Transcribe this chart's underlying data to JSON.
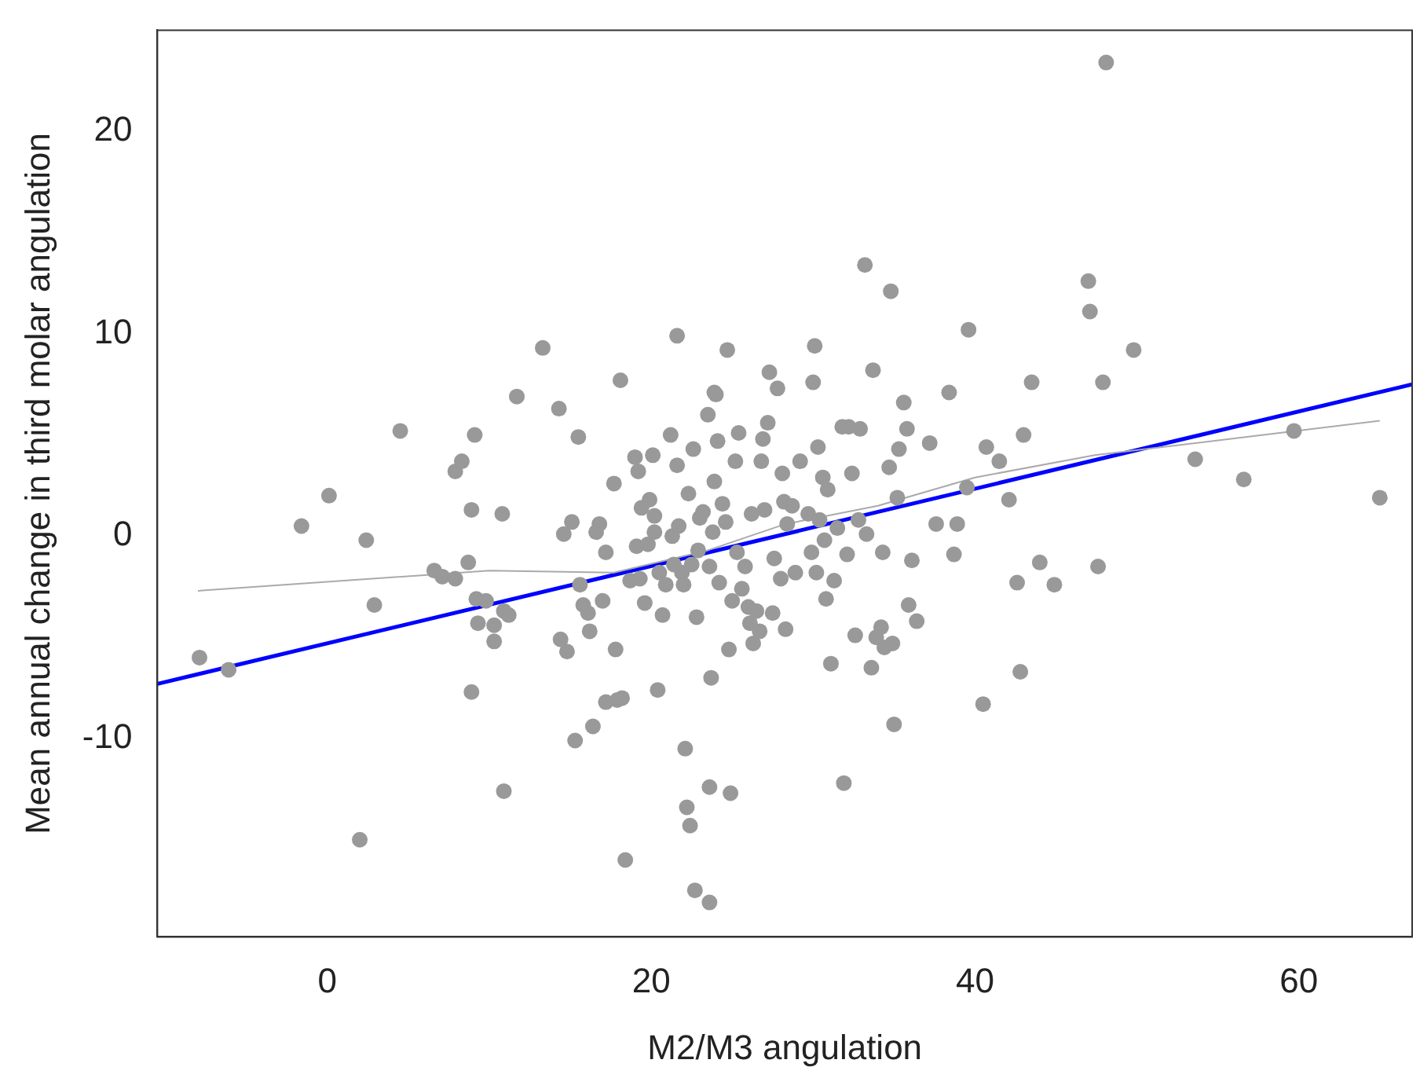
{
  "chart_data": {
    "type": "scatter",
    "xlabel": "M2/M3 angulation",
    "ylabel": "Mean annual change in third molar angulation",
    "xlim": [
      -10.5,
      67
    ],
    "ylim": [
      -19.8,
      25
    ],
    "xticks": [
      0,
      20,
      40,
      60
    ],
    "yticks": [
      -10,
      0,
      10,
      20
    ],
    "grid": false,
    "legend": false,
    "marker": "circle",
    "series": [
      {
        "color": "#999999",
        "x": [
          -7.9,
          -6.1,
          -1.6,
          0.1,
          2.4,
          2.0,
          2.9,
          4.5,
          6.6,
          7.1,
          7.9,
          7.9,
          8.3,
          8.7,
          8.9,
          8.9,
          9.1,
          9.2,
          9.3,
          9.8,
          10.3,
          10.3,
          10.8,
          10.9,
          10.9,
          11.2,
          11.7,
          13.3,
          14.3,
          14.4,
          14.6,
          14.8,
          15.1,
          15.3,
          15.5,
          15.6,
          15.8,
          16.1,
          16.2,
          16.4,
          16.6,
          16.8,
          17.0,
          17.2,
          17.2,
          17.7,
          17.8,
          17.9,
          18.1,
          18.2,
          18.4,
          18.7,
          19.0,
          19.1,
          19.2,
          19.3,
          19.4,
          19.6,
          19.8,
          19.9,
          20.1,
          20.2,
          20.2,
          20.4,
          20.5,
          20.7,
          20.9,
          21.2,
          21.3,
          21.4,
          21.6,
          21.6,
          21.7,
          21.9,
          22.0,
          22.1,
          22.2,
          22.3,
          22.4,
          22.5,
          22.6,
          22.7,
          22.8,
          22.9,
          23.0,
          23.2,
          23.5,
          23.6,
          23.6,
          23.6,
          23.7,
          23.8,
          23.9,
          23.9,
          24.0,
          24.1,
          24.2,
          24.4,
          24.6,
          24.7,
          24.8,
          24.9,
          25.0,
          25.2,
          25.3,
          25.4,
          25.6,
          25.8,
          26.0,
          26.1,
          26.2,
          26.3,
          26.5,
          26.7,
          26.8,
          26.9,
          27.0,
          27.2,
          27.3,
          27.5,
          27.6,
          27.8,
          28.0,
          28.1,
          28.2,
          28.3,
          28.4,
          28.7,
          28.9,
          29.2,
          29.7,
          29.9,
          30.0,
          30.1,
          30.2,
          30.3,
          30.4,
          30.6,
          30.7,
          30.8,
          30.9,
          31.1,
          31.3,
          31.5,
          31.8,
          31.9,
          32.1,
          32.2,
          32.4,
          32.6,
          32.8,
          32.9,
          33.2,
          33.3,
          33.6,
          33.7,
          33.9,
          34.2,
          34.3,
          34.4,
          34.7,
          34.8,
          34.9,
          35.0,
          35.2,
          35.3,
          35.6,
          35.8,
          35.9,
          36.1,
          36.4,
          37.2,
          37.6,
          38.4,
          38.7,
          38.9,
          39.5,
          39.6,
          40.5,
          40.7,
          41.5,
          42.1,
          42.6,
          42.8,
          43.0,
          43.5,
          44.0,
          44.9,
          47.0,
          47.1,
          47.6,
          47.9,
          48.1,
          49.8,
          53.6,
          56.6,
          59.7,
          65.0
        ],
        "values": [
          -6.0,
          -6.6,
          0.5,
          2.0,
          -0.2,
          -15.0,
          -3.4,
          5.2,
          -1.7,
          -2.0,
          -2.1,
          3.2,
          3.7,
          -1.3,
          1.3,
          -7.7,
          5.0,
          -3.1,
          -4.3,
          -3.2,
          -4.4,
          -5.2,
          1.1,
          -3.7,
          -12.6,
          -3.9,
          6.9,
          9.3,
          6.3,
          -5.1,
          0.1,
          -5.7,
          0.7,
          -10.1,
          4.9,
          -2.4,
          -3.4,
          -3.8,
          -4.7,
          -9.4,
          0.2,
          0.6,
          -3.2,
          -0.8,
          -8.2,
          2.6,
          -5.6,
          -8.1,
          7.7,
          -8.0,
          -16.0,
          -2.2,
          3.9,
          -0.5,
          3.2,
          -2.1,
          1.4,
          -3.3,
          -0.4,
          1.8,
          4.0,
          1.0,
          0.2,
          -7.6,
          -1.8,
          -3.9,
          -2.4,
          5.0,
          0.0,
          -1.4,
          9.9,
          3.5,
          0.5,
          -1.8,
          -2.4,
          -10.5,
          -13.4,
          2.1,
          -14.3,
          -1.4,
          4.3,
          -17.5,
          -4.0,
          -0.7,
          0.9,
          1.2,
          6.0,
          -1.5,
          -12.4,
          -18.1,
          -7.0,
          0.2,
          2.7,
          7.1,
          7.0,
          4.7,
          -2.3,
          1.6,
          0.7,
          9.2,
          -5.6,
          -12.7,
          -3.2,
          3.7,
          -0.8,
          5.1,
          -2.6,
          -1.5,
          -3.5,
          -4.3,
          1.1,
          -5.3,
          -3.7,
          -4.7,
          3.7,
          4.8,
          1.3,
          5.6,
          8.1,
          -3.8,
          -1.1,
          7.3,
          -2.1,
          3.1,
          1.7,
          -4.6,
          0.6,
          1.5,
          -1.8,
          3.7,
          1.1,
          -0.8,
          7.6,
          9.4,
          -1.8,
          4.4,
          0.8,
          2.9,
          -0.2,
          -3.1,
          2.3,
          -6.3,
          -2.2,
          0.4,
          5.4,
          -12.2,
          -0.9,
          5.4,
          3.1,
          -4.9,
          0.8,
          5.3,
          13.4,
          0.1,
          -6.5,
          8.2,
          -5.0,
          -4.5,
          -0.8,
          -5.5,
          3.4,
          12.1,
          -5.3,
          -9.3,
          1.9,
          4.3,
          6.6,
          5.3,
          -3.4,
          -1.2,
          -4.2,
          4.6,
          0.6,
          7.1,
          -0.9,
          0.6,
          2.4,
          10.2,
          -8.3,
          4.4,
          3.7,
          1.8,
          -2.3,
          -6.7,
          5.0,
          7.6,
          -1.3,
          -2.4,
          12.6,
          11.1,
          -1.5,
          7.6,
          23.4,
          9.2,
          3.8,
          2.8,
          5.2,
          1.9
        ]
      },
      {
        "type": "line",
        "color": "#aaaaaa",
        "marker": "none",
        "x": [
          -8,
          10,
          17.7,
          23.5,
          28.3,
          34,
          40,
          47.4,
          65
        ],
        "values": [
          -2.7,
          -1.7,
          -1.8,
          -0.7,
          0.6,
          1.5,
          2.9,
          4.0,
          5.7
        ]
      },
      {
        "type": "line",
        "color": "#0000ff",
        "marker": "none",
        "x": [
          -10.5,
          67
        ],
        "values": [
          -7.3,
          7.5
        ]
      }
    ]
  }
}
